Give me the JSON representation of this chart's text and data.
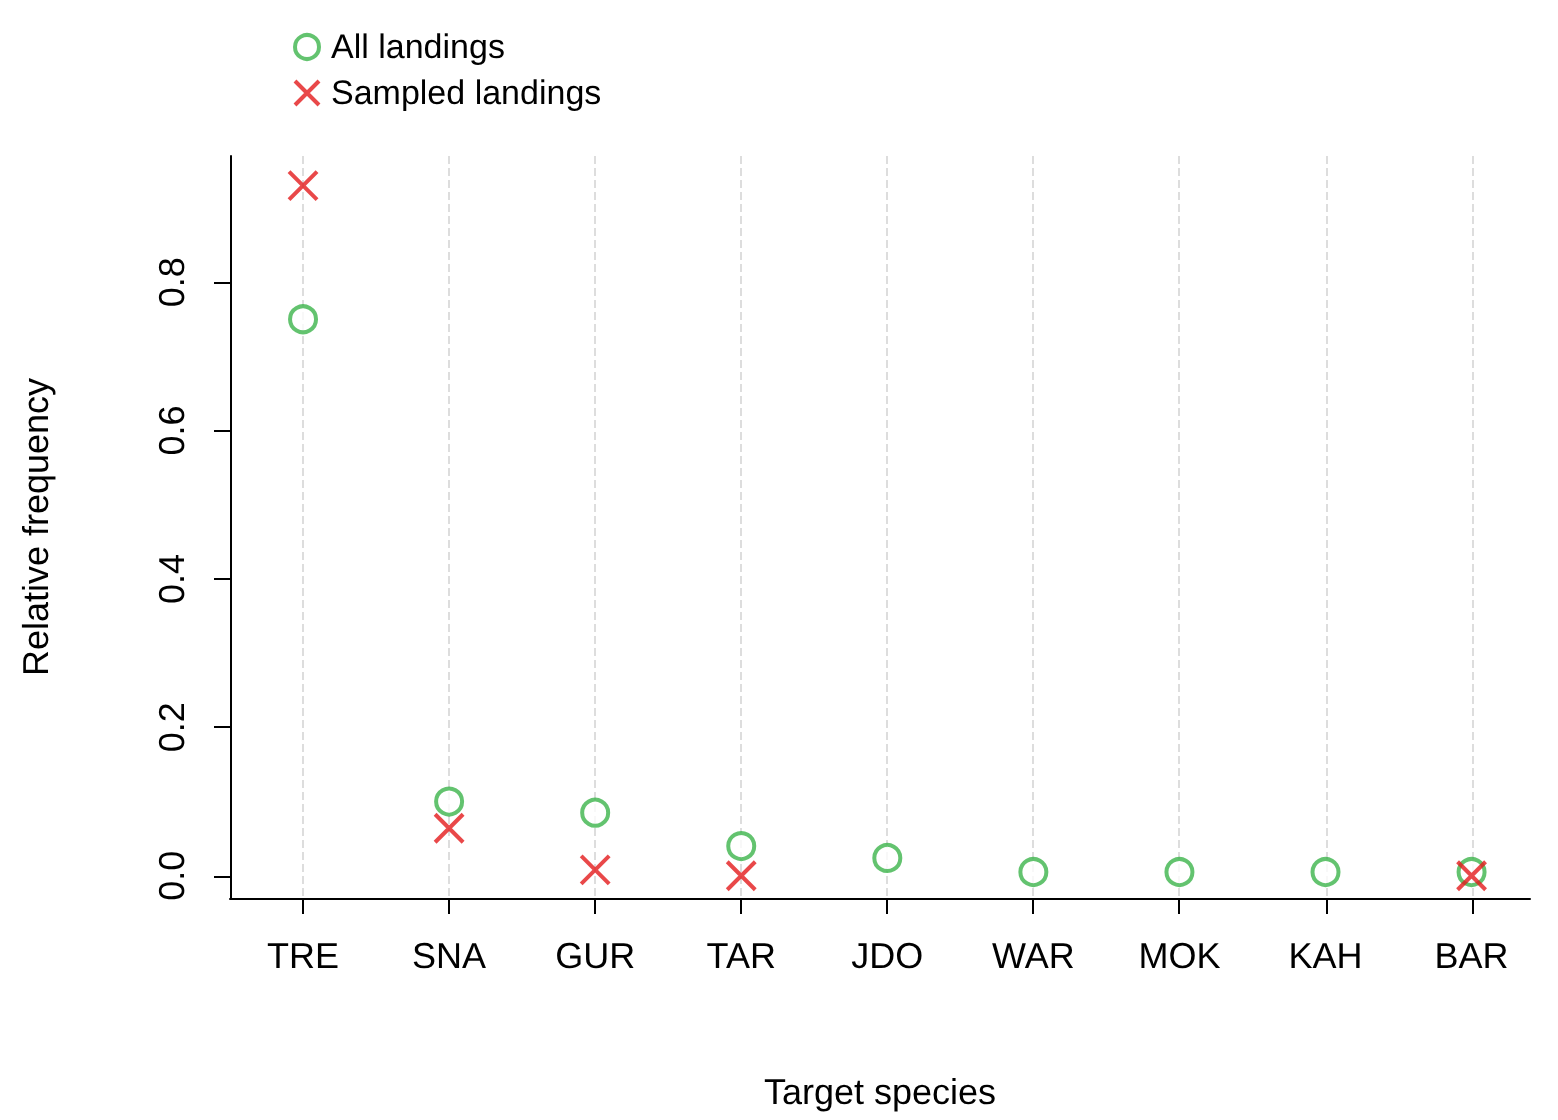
{
  "chart_data": {
    "type": "scatter",
    "xlabel": "Target species",
    "ylabel": "Relative frequency",
    "categories": [
      "TRE",
      "SNA",
      "GUR",
      "TAR",
      "JDO",
      "WAR",
      "MOK",
      "KAH",
      "BAR"
    ],
    "series": [
      {
        "name": "All landings",
        "color": "#3cb44b",
        "marker": "circle",
        "values": [
          0.75,
          0.1,
          0.085,
          0.04,
          0.024,
          0.005,
          0.005,
          0.005,
          0.005
        ]
      },
      {
        "name": "Sampled landings",
        "color": "#e41a1c",
        "marker": "cross",
        "values": [
          0.93,
          0.064,
          0.008,
          0.0,
          null,
          null,
          null,
          null,
          0.0
        ]
      }
    ],
    "ylim": [
      -0.03,
      0.97
    ],
    "yticks": [
      {
        "value": 0,
        "label": "0.0"
      },
      {
        "value": 0.2,
        "label": "0.2"
      },
      {
        "value": 0.4,
        "label": "0.4"
      },
      {
        "value": 0.6,
        "label": "0.6"
      },
      {
        "value": 0.8,
        "label": "0.8"
      }
    ],
    "grid": "x",
    "legend": "top left"
  }
}
